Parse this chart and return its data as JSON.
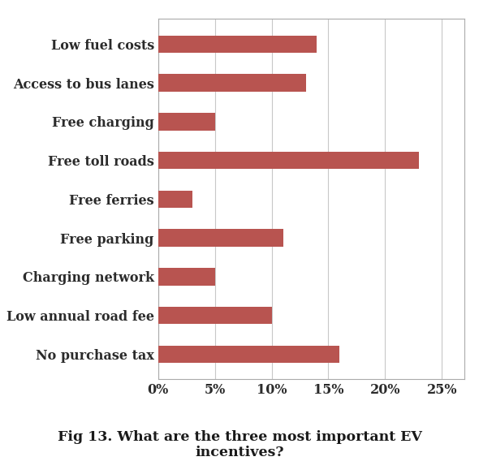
{
  "categories": [
    "No purchase tax",
    "Low annual road fee",
    "Charging network",
    "Free parking",
    "Free ferries",
    "Free toll roads",
    "Free charging",
    "Access to bus lanes",
    "Low fuel costs"
  ],
  "values": [
    16,
    10,
    5,
    11,
    3,
    23,
    5,
    13,
    14
  ],
  "bar_color": "#b85450",
  "bg_color": "#ffffff",
  "plot_bg_color": "#ffffff",
  "title_line1": "Fig 13. What are the three most important EV",
  "title_line2": "incentives?",
  "title_fontsize": 12.5,
  "xlim": [
    0,
    27
  ],
  "xticks": [
    0,
    5,
    10,
    15,
    20,
    25
  ],
  "xtick_labels": [
    "0%",
    "5%",
    "10%",
    "15%",
    "20%",
    "25%"
  ],
  "bar_height": 0.45,
  "label_fontsize": 11.5,
  "tick_fontsize": 11.5,
  "grid_color": "#c8c8c8",
  "border_color": "#aaaaaa",
  "label_color": "#2b2b2b"
}
